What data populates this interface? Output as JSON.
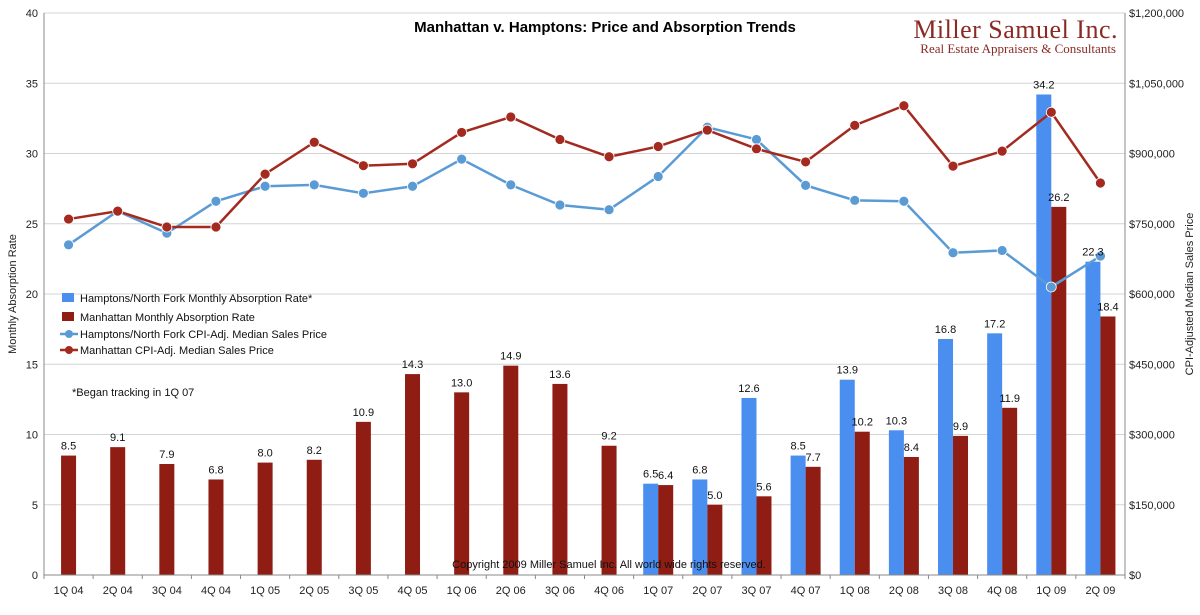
{
  "logo": {
    "name": "Miller Samuel Inc.",
    "tagline": "Real Estate Appraisers & Consultants"
  },
  "note": "*Began tracking in 1Q 07",
  "copyright": "Copyright 2009 Miller Samuel Inc.  All world wide rights reserved.",
  "colors": {
    "hamptons": "#4a8ef0",
    "manhattan": "#8f1d14",
    "hamptons_line": "#5b9bd5",
    "manhattan_line": "#a42a20",
    "grid": "#d4d4d4"
  },
  "chart_data": {
    "type": "bar",
    "title": "Manhattan v. Hamptons: Price and Absorption Trends",
    "ylabel": "Monthly Absorption Rate",
    "y2label": "CPI-Adjusted Median Sales Price",
    "ylim": [
      0,
      40
    ],
    "y2lim": [
      0,
      1200000
    ],
    "yticks": [
      "0",
      "5",
      "10",
      "15",
      "20",
      "25",
      "30",
      "35",
      "40"
    ],
    "y2ticks": [
      "$0",
      "$150,000",
      "$300,000",
      "$450,000",
      "$600,000",
      "$750,000",
      "$900,000",
      "$1,050,000",
      "$1,200,000"
    ],
    "grid": true,
    "legend_position": "left",
    "categories": [
      "1Q 04",
      "2Q 04",
      "3Q 04",
      "4Q 04",
      "1Q 05",
      "2Q 05",
      "3Q 05",
      "4Q 05",
      "1Q 06",
      "2Q 06",
      "3Q 06",
      "4Q 06",
      "1Q 07",
      "2Q 07",
      "3Q 07",
      "4Q 07",
      "1Q 08",
      "2Q 08",
      "3Q 08",
      "4Q 08",
      "1Q 09",
      "2Q 09"
    ],
    "series": [
      {
        "name": "Hamptons/North Fork Monthly Absorption Rate*",
        "kind": "bar",
        "axis": "left",
        "values": [
          null,
          null,
          null,
          null,
          null,
          null,
          null,
          null,
          null,
          null,
          null,
          null,
          6.5,
          6.8,
          12.6,
          8.5,
          13.9,
          10.3,
          16.8,
          17.2,
          34.2,
          22.3
        ],
        "labels": [
          "",
          "",
          "",
          "",
          "",
          "",
          "",
          "",
          "",
          "",
          "",
          "",
          "6.5",
          "6.8",
          "12.6",
          "8.5",
          "13.9",
          "10.3",
          "16.8",
          "17.2",
          "34.2",
          "22.3"
        ]
      },
      {
        "name": "Manhattan Monthly Absorption Rate",
        "kind": "bar",
        "axis": "left",
        "values": [
          8.5,
          9.1,
          7.9,
          6.8,
          8.0,
          8.2,
          10.9,
          14.3,
          13.0,
          14.9,
          13.6,
          9.2,
          6.4,
          5.0,
          5.6,
          7.7,
          10.2,
          8.4,
          9.9,
          11.9,
          26.2,
          18.4
        ],
        "labels": [
          "8.5",
          "9.1",
          "7.9",
          "6.8",
          "8.0",
          "8.2",
          "10.9",
          "14.3",
          "13.0",
          "14.9",
          "13.6",
          "9.2",
          "6.4",
          "5.0",
          "5.6",
          "7.7",
          "10.2",
          "8.4",
          "9.9",
          "11.9",
          "26.2",
          "18.4"
        ]
      },
      {
        "name": "Hamptons/North Fork CPI-Adj. Median Sales Price",
        "kind": "line",
        "axis": "right",
        "values": [
          705000,
          777000,
          730000,
          798000,
          830000,
          833000,
          815000,
          830000,
          888000,
          833000,
          790000,
          780000,
          851000,
          956000,
          930000,
          832000,
          800000,
          798000,
          688000,
          693000,
          615000,
          681000
        ]
      },
      {
        "name": "Manhattan CPI-Adj. Median Sales Price",
        "kind": "line",
        "axis": "right",
        "values": [
          760000,
          777000,
          743000,
          743000,
          856000,
          924000,
          874000,
          878000,
          945000,
          978000,
          930000,
          893000,
          915000,
          950000,
          910000,
          882000,
          960000,
          1002000,
          873000,
          905000,
          988000,
          837000
        ]
      }
    ]
  }
}
